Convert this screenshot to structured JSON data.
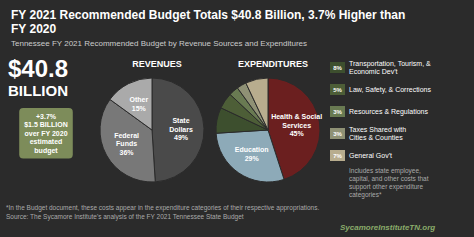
{
  "title": "FY 2021 Recommended Budget Totals $40.8 Billion, 3.7% Higher than\nFY 2020",
  "subtitle": "Tennessee FY 2021 Recommended Budget by Revenue Sources and Expenditures",
  "annotations": [
    {
      "text": "$40.8"
    },
    {
      "text": "BILLION"
    },
    {
      "text": "+3.7%\n$1.5 BILLION\nover FY 2020\nestimated\nbudget",
      "color": "#7d8c5a"
    },
    {
      "text": "Includes state employee,\ncapital, and other costs that\nsupport other expenditure\ncategories*"
    },
    {
      "text": "*In the Budget document, these costs appear in the expenditure categories of their respective appropriations.\nSource: The Sycamore Institute's analysis of the FY 2021 Tennessee State Budget"
    },
    {
      "text": "SycamoreInstituteTN.org",
      "color": "#8aab6a"
    }
  ],
  "chart_data": [
    {
      "type": "pie",
      "title": "REVENUES",
      "categories": [
        "State\nDollars",
        "Federal\nFunds",
        "Other"
      ],
      "values": [
        49,
        36,
        15
      ],
      "value_labels": [
        "49%",
        "36%",
        "15%"
      ],
      "colors": [
        "#4a4a4a",
        "#787878",
        "#aaaaaa"
      ],
      "data_labels": true
    },
    {
      "type": "pie",
      "title": "EXPENDITURES",
      "categories": [
        "Health & Social\nServices",
        "Education",
        "Transportation, Tourism, &\nEconomic Dev't",
        "Law, Safety, & Corrections",
        "Resources & Regulations",
        "Taxes Shared with\nCities & Counties",
        "General Gov't"
      ],
      "values": [
        45,
        29,
        8,
        5,
        3,
        3,
        7
      ],
      "value_labels": [
        "45%",
        "29%",
        "8%",
        "5%",
        "3%",
        "3%",
        "7%"
      ],
      "colors": [
        "#6b1f1f",
        "#8daab8",
        "#3d4f2e",
        "#4d5e37",
        "#697a52",
        "#8f9175",
        "#b8ad8e"
      ],
      "data_labels": true,
      "legend": "right"
    }
  ]
}
